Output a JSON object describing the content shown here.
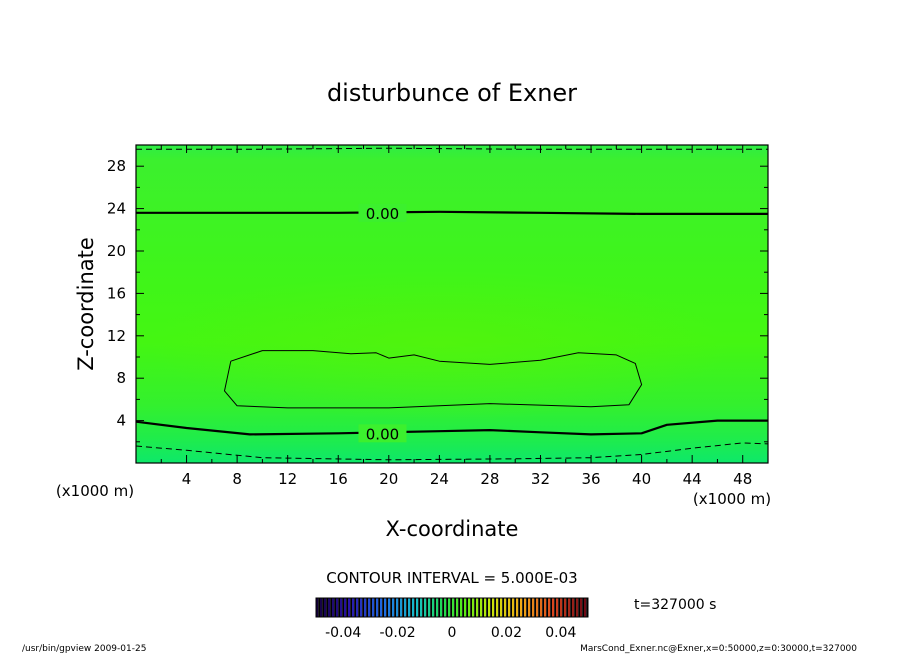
{
  "chart_data": {
    "type": "contour",
    "title": "disturbunce of Exner",
    "xlabel": "X-coordinate",
    "ylabel": "Z-coordinate",
    "x_unit": "(x1000 m)",
    "z_unit": "(x1000 m)",
    "xlim": [
      0,
      50
    ],
    "ylim": [
      0,
      30
    ],
    "x_ticks": [
      4,
      8,
      12,
      16,
      20,
      24,
      28,
      32,
      36,
      40,
      44,
      48
    ],
    "y_ticks": [
      4,
      8,
      12,
      16,
      20,
      24,
      28
    ],
    "contour_interval_label": "CONTOUR INTERVAL = 5.000E-03",
    "contours": [
      {
        "level": "0.00",
        "label": "0.00",
        "style": "solid-thick",
        "points": [
          [
            0,
            23.6
          ],
          [
            8,
            23.6
          ],
          [
            16,
            23.6
          ],
          [
            24,
            23.7
          ],
          [
            32,
            23.6
          ],
          [
            40,
            23.5
          ],
          [
            50,
            23.5
          ]
        ]
      },
      {
        "level": "0.00",
        "label": "0.00",
        "style": "solid-thick",
        "points": [
          [
            0,
            3.9
          ],
          [
            4,
            3.3
          ],
          [
            9,
            2.7
          ],
          [
            16,
            2.8
          ],
          [
            24,
            3.0
          ],
          [
            28,
            3.1
          ],
          [
            32,
            2.9
          ],
          [
            36,
            2.7
          ],
          [
            40,
            2.8
          ],
          [
            42,
            3.6
          ],
          [
            46,
            4.0
          ],
          [
            50,
            4.0
          ]
        ]
      },
      {
        "level": "0.005",
        "label": "",
        "style": "solid-thin",
        "points": [
          [
            7.5,
            9.6
          ],
          [
            10,
            10.6
          ],
          [
            14,
            10.6
          ],
          [
            17,
            10.3
          ],
          [
            19,
            10.4
          ],
          [
            20,
            9.9
          ],
          [
            22,
            10.2
          ],
          [
            24,
            9.6
          ],
          [
            28,
            9.3
          ],
          [
            32,
            9.7
          ],
          [
            35,
            10.4
          ],
          [
            38,
            10.2
          ],
          [
            39.5,
            9.4
          ],
          [
            40,
            7.4
          ],
          [
            39,
            5.5
          ],
          [
            36,
            5.3
          ],
          [
            28,
            5.6
          ],
          [
            24,
            5.4
          ],
          [
            20,
            5.2
          ],
          [
            12,
            5.2
          ],
          [
            8,
            5.4
          ],
          [
            7,
            6.8
          ],
          [
            7.5,
            9.6
          ]
        ]
      },
      {
        "level": "-0.005",
        "label": "",
        "style": "dashed",
        "points": [
          [
            0,
            1.6
          ],
          [
            4,
            1.2
          ],
          [
            10,
            0.5
          ],
          [
            20,
            0.3
          ],
          [
            30,
            0.4
          ],
          [
            36,
            0.5
          ],
          [
            40,
            0.8
          ],
          [
            44,
            1.4
          ],
          [
            48,
            1.9
          ],
          [
            50,
            1.8
          ]
        ]
      },
      {
        "level": "-0.005",
        "label": "",
        "style": "dashed",
        "points": [
          [
            0,
            29.6
          ],
          [
            10,
            29.6
          ],
          [
            20,
            29.7
          ],
          [
            30,
            29.6
          ],
          [
            40,
            29.6
          ],
          [
            50,
            29.6
          ]
        ]
      }
    ],
    "colorbar": {
      "tick_labels": [
        "-0.04",
        "-0.02",
        "0",
        "0.02",
        "0.04"
      ],
      "range": [
        -0.05,
        0.05
      ]
    },
    "time_label": "t=327000 s"
  },
  "footer": {
    "left": "/usr/bin/gpview  2009-01-25",
    "right": "MarsCond_Exner.nc@Exner,x=0:50000,z=0:30000,t=327000"
  }
}
